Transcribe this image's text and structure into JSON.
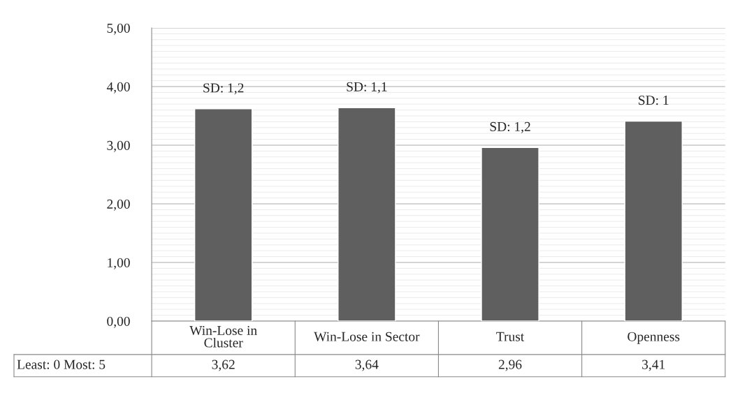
{
  "chart_data": {
    "type": "bar",
    "categories": [
      "Win-Lose in\nCluster",
      "Win-Lose in Sector",
      "Trust",
      "Openness"
    ],
    "values": [
      3.62,
      3.64,
      2.96,
      3.41
    ],
    "color": "#5f5f5f",
    "data_labels": true,
    "value_labels": [
      "3,62",
      "3,64",
      "2,96",
      "3,41"
    ],
    "ylim": [
      0,
      5
    ],
    "yticks": [
      {
        "value": 0,
        "label": "0,00"
      },
      {
        "value": 1,
        "label": "1,00"
      },
      {
        "value": 2,
        "label": "2,00"
      },
      {
        "value": 3,
        "label": "3,00"
      },
      {
        "value": 4,
        "label": "4,00"
      },
      {
        "value": 5,
        "label": "5,00"
      }
    ],
    "grid": "y",
    "annotations": [
      {
        "text": "SD: 1,2",
        "x": "Win-Lose in\nCluster",
        "y": 3.62
      },
      {
        "text": "SD: 1,1",
        "x": "Win-Lose in Sector",
        "y": 3.64
      },
      {
        "text": "SD: 1,2",
        "x": "Trust",
        "y": 2.96
      },
      {
        "text": "SD: 1",
        "x": "Openness",
        "y": 3.41
      },
      "Least: 0 Most: 5"
    ]
  }
}
